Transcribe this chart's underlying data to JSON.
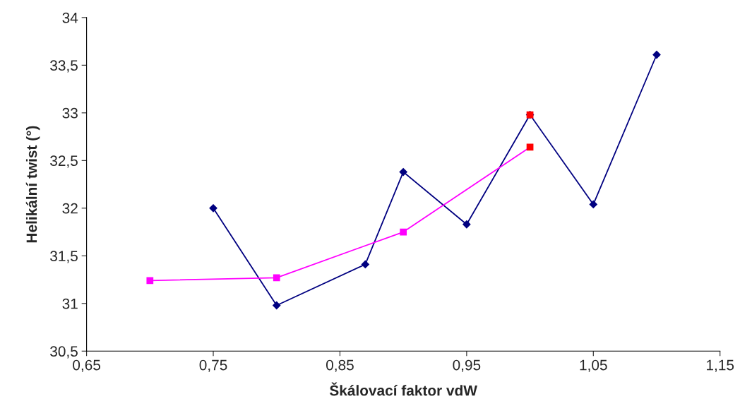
{
  "chart_data": {
    "type": "line",
    "xlabel": "Škálovací faktor vdW",
    "ylabel": "Helikální twist (°)",
    "xlim": [
      0.65,
      1.15
    ],
    "ylim": [
      30.5,
      34
    ],
    "xticks": [
      {
        "value": 0.65,
        "label": "0,65"
      },
      {
        "value": 0.75,
        "label": "0,75"
      },
      {
        "value": 0.85,
        "label": "0,85"
      },
      {
        "value": 0.95,
        "label": "0,95"
      },
      {
        "value": 1.05,
        "label": "1,05"
      },
      {
        "value": 1.15,
        "label": "1,15"
      }
    ],
    "yticks": [
      {
        "value": 30.5,
        "label": "30,5"
      },
      31,
      {
        "value": 31.5,
        "label": "31,5"
      },
      32,
      {
        "value": 32.5,
        "label": "32,5"
      },
      33,
      {
        "value": 33.5,
        "label": "33,5"
      },
      34
    ],
    "grid": false,
    "legend": false,
    "series": [
      {
        "color": "#000080",
        "marker": "diamond",
        "x": [
          0.75,
          0.8,
          0.87,
          0.9,
          0.95,
          1.0,
          1.05,
          1.1
        ],
        "values": [
          32.0,
          30.98,
          31.41,
          32.38,
          31.83,
          32.98,
          32.04,
          33.61
        ]
      },
      {
        "color": "#ff00ff",
        "marker": "square",
        "x": [
          0.7,
          0.8,
          0.9,
          1.0
        ],
        "values": [
          31.24,
          31.27,
          31.75,
          32.64
        ],
        "colors": [
          "#ff00ff",
          "#ff00ff",
          "#ff00ff",
          "#ff0000"
        ]
      },
      {
        "type": "scatter",
        "color": "#ff0000",
        "marker": "square",
        "x": [
          1.0
        ],
        "values": [
          32.98
        ]
      }
    ]
  }
}
